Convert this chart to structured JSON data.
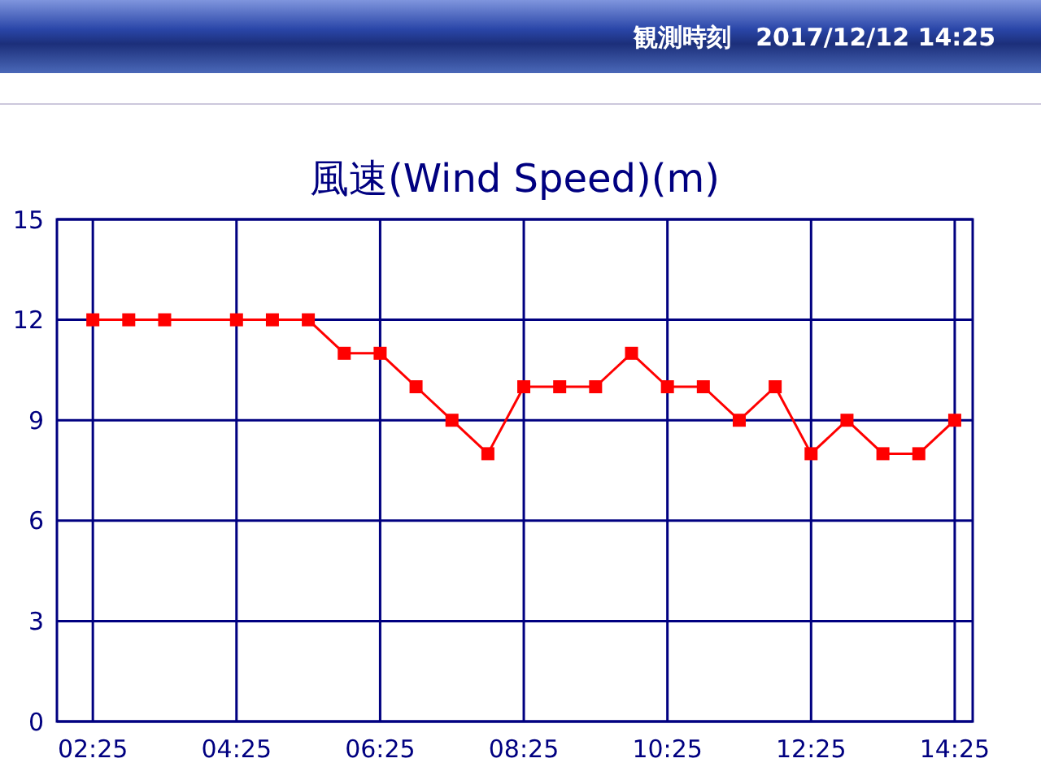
{
  "chart_data": {
    "type": "line",
    "title": "風速(Wind Speed)(m)",
    "annotations": [
      "観測時刻　2017/12/12 14:25"
    ],
    "x": [
      2.4167,
      2.9167,
      3.4167,
      3.9167,
      4.4167,
      4.9167,
      5.4167,
      5.9167,
      6.4167,
      6.9167,
      7.4167,
      7.9167,
      8.4167,
      8.9167,
      9.4167,
      9.9167,
      10.4167,
      10.9167,
      11.4167,
      11.9167,
      12.4167,
      12.9167,
      13.4167,
      13.9167,
      14.4167
    ],
    "series": [
      {
        "color": "#ff0000",
        "values": [
          12,
          12,
          12,
          null,
          12,
          12,
          12,
          11,
          11,
          10,
          9,
          8,
          10,
          10,
          10,
          11,
          10,
          10,
          9,
          10,
          8,
          9,
          8,
          8,
          9
        ]
      }
    ],
    "xlim": [
      1.9167,
      14.6667
    ],
    "xticks": [
      {
        "value": 2.4167,
        "label": "02:25"
      },
      {
        "value": 4.4167,
        "label": "04:25"
      },
      {
        "value": 6.4167,
        "label": "06:25"
      },
      {
        "value": 8.4167,
        "label": "08:25"
      },
      {
        "value": 10.4167,
        "label": "10:25"
      },
      {
        "value": 12.4167,
        "label": "12:25"
      },
      {
        "value": 14.4167,
        "label": "14:25"
      }
    ],
    "ylim": [
      0,
      15
    ],
    "yticks": [
      0,
      3,
      6,
      9,
      12,
      15
    ],
    "grid": true,
    "marker": "square",
    "line_style": "solid"
  }
}
